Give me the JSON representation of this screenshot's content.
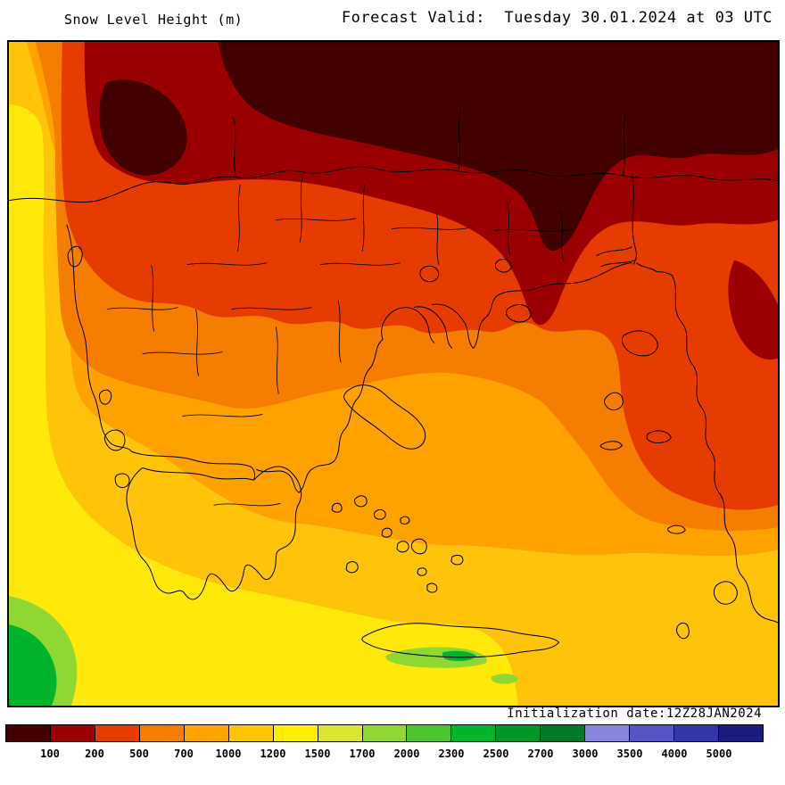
{
  "header": {
    "title": "Snow Level Height (m)",
    "forecast_valid": "Forecast Valid:  Tuesday 30.01.2024 at 03 UTC"
  },
  "map": {
    "initialization_date": "Initialization date:12Z28JAN2024",
    "region": "Greece and the Aegean Sea snow level filled contours"
  },
  "legend": {
    "boundary_labels": [
      "100",
      "200",
      "500",
      "700",
      "1000",
      "1200",
      "1500",
      "1700",
      "2000",
      "2300",
      "2500",
      "2700",
      "3000",
      "3500",
      "4000",
      "5000"
    ],
    "cell_colors": [
      "#420000",
      "#9b0000",
      "#e73c00",
      "#f57e00",
      "#ffa200",
      "#ffc400",
      "#ffee00",
      "#d8e632",
      "#8fd833",
      "#4cc42e",
      "#00b42c",
      "#009628",
      "#007a24",
      "#8585db",
      "#5555c8",
      "#3535aa",
      "#1b1b7e"
    ]
  },
  "field_colors": {
    "base_golden": "#ffc40a",
    "yellow": "#ffe80a",
    "amber": "#ffa200",
    "orange": "#f57e00",
    "red_orange": "#e73c00",
    "dark_red": "#9b0000",
    "maroon": "#420000",
    "light_green": "#8fd833",
    "green": "#00b42c"
  }
}
